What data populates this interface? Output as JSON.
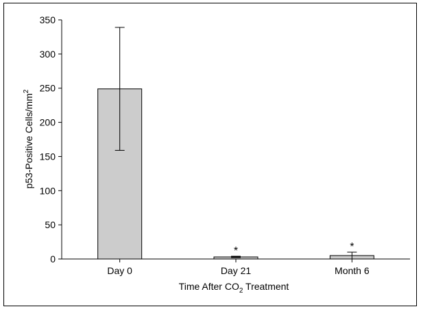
{
  "chart_data": {
    "type": "bar",
    "categories": [
      "Day 0",
      "Day 21",
      "Month 6"
    ],
    "values": [
      249,
      3,
      5
    ],
    "errors": [
      90,
      1,
      5
    ],
    "significance": [
      "",
      "*",
      "*"
    ],
    "xlabel_main": "Time After CO",
    "xlabel_sub": "2",
    "xlabel_tail": " Treatment",
    "ylabel_main": "p53-Positive Cells/mm",
    "ylabel_sup": "2",
    "ylim": [
      0,
      350
    ],
    "yticks": [
      0,
      50,
      100,
      150,
      200,
      250,
      300,
      350
    ],
    "bar_color": "#cccccc",
    "grid": false
  }
}
